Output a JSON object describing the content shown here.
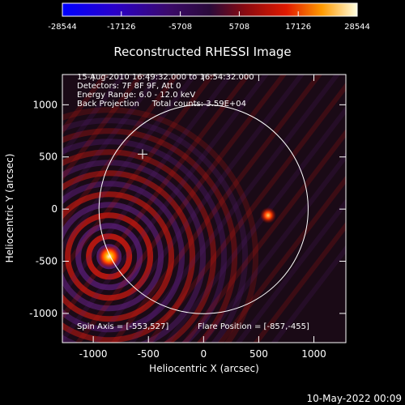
{
  "chart_data": {
    "type": "heatmap",
    "title": "Reconstructed RHESSI Image",
    "xlabel": "Heliocentric X (arcsec)",
    "ylabel": "Heliocentric Y (arcsec)",
    "xlim": [
      -1280,
      1290
    ],
    "ylim": [
      -1280,
      1290
    ],
    "xticks": [
      -1000,
      -500,
      0,
      500,
      1000
    ],
    "yticks": [
      -1000,
      -500,
      0,
      500,
      1000
    ],
    "colorbar": {
      "min": -28544,
      "max": 28544,
      "ticks": [
        -28544,
        -17126,
        -5708,
        5708,
        17126,
        28544
      ]
    },
    "annotations": [
      "15-Aug-2010 16:49:32.000 to 16:54:32.000",
      "Detectors: 7F 8F 9F, Att 0",
      "Energy Range: 6.0 - 12.0 keV",
      "Back Projection     Total counts: 3.59E+04"
    ],
    "spin_axis_label": "Spin Axis = [-553,527]",
    "flare_position_label": "Flare Position = [-857,-455]",
    "spin_axis": [
      -553,
      527
    ],
    "flare_position": [
      -857,
      -455
    ],
    "secondary_source": [
      585,
      -60
    ],
    "solar_radius": 948,
    "timestamp": "10-May-2022 00:09"
  },
  "colors": {
    "background": "#000000",
    "axes": "#ffffff",
    "limb": "#ffffff",
    "positive": "#d41a10",
    "negative": "#5a1e78"
  }
}
